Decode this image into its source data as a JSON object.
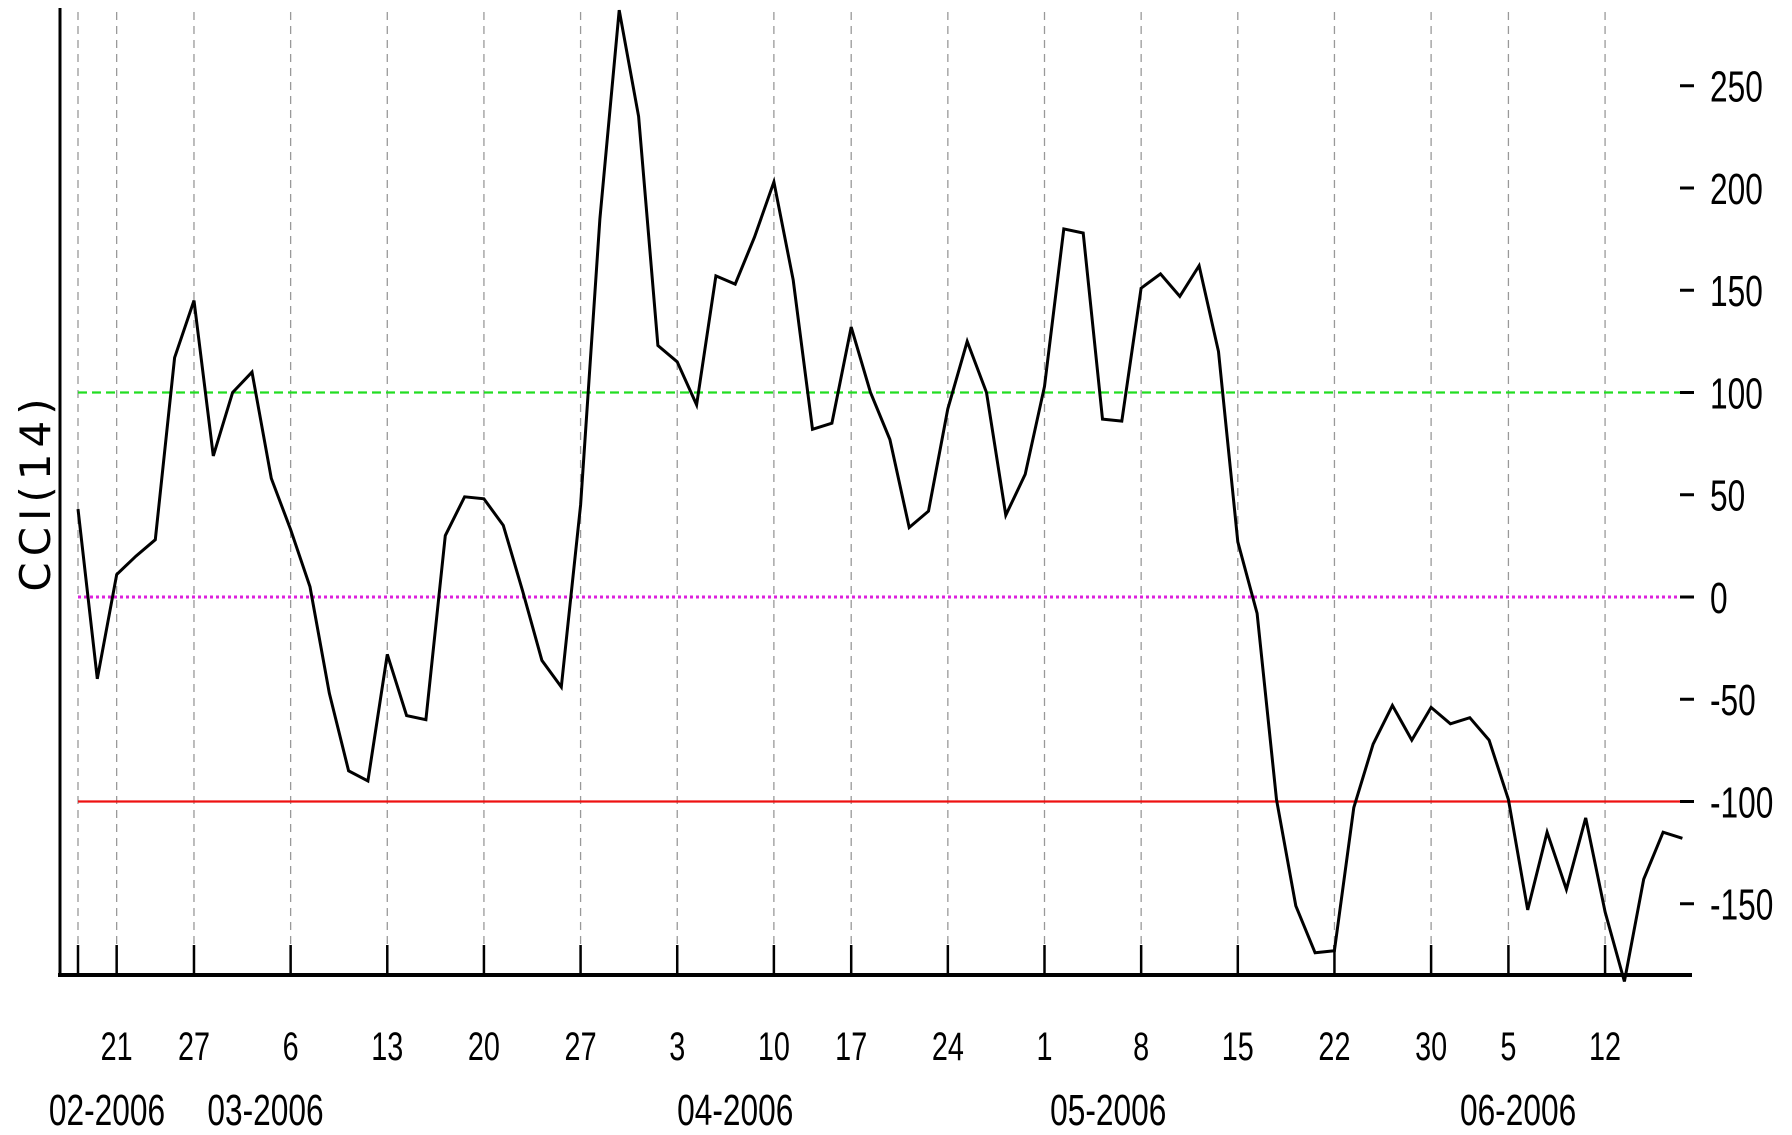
{
  "chart_data": {
    "type": "line",
    "ylabel": "CCI(14)",
    "ylim": [
      -190,
      290
    ],
    "yticks": [
      250,
      200,
      150,
      100,
      50,
      0,
      -50,
      -100,
      -150
    ],
    "ytick_labels": [
      "250",
      "200",
      "150",
      "100",
      "50",
      "0",
      "-50",
      "-100",
      "-150"
    ],
    "reference_lines": [
      {
        "value": 100,
        "color": "#22dd22",
        "style": "dashed"
      },
      {
        "value": 0,
        "color": "#dd22dd",
        "style": "dotted"
      },
      {
        "value": -100,
        "color": "#ee1111",
        "style": "solid"
      }
    ],
    "x_tick_labels": [
      {
        "label": "21",
        "index": 2
      },
      {
        "label": "27",
        "index": 6
      },
      {
        "label": "6",
        "index": 11
      },
      {
        "label": "13",
        "index": 16
      },
      {
        "label": "20",
        "index": 21
      },
      {
        "label": "27",
        "index": 26
      },
      {
        "label": "3",
        "index": 31
      },
      {
        "label": "10",
        "index": 36
      },
      {
        "label": "17",
        "index": 40
      },
      {
        "label": "24",
        "index": 45
      },
      {
        "label": "1",
        "index": 50
      },
      {
        "label": "8",
        "index": 55
      },
      {
        "label": "15",
        "index": 60
      },
      {
        "label": "22",
        "index": 65
      },
      {
        "label": "30",
        "index": 70
      },
      {
        "label": "5",
        "index": 74
      },
      {
        "label": "12",
        "index": 79
      }
    ],
    "month_labels": [
      {
        "label": "02-2006",
        "index": 1.5
      },
      {
        "label": "03-2006",
        "index": 9.7
      },
      {
        "label": "04-2006",
        "index": 34
      },
      {
        "label": "05-2006",
        "index": 53.3
      },
      {
        "label": "06-2006",
        "index": 74.5
      }
    ],
    "series": [
      {
        "color": "#000000",
        "values": [
          43,
          -40,
          11,
          20,
          28,
          117,
          145,
          69,
          100,
          110,
          58,
          33,
          5,
          -47,
          -85,
          -90,
          -28,
          -58,
          -60,
          30,
          49,
          48,
          35,
          3,
          -31,
          -44,
          45,
          185,
          287,
          235,
          123,
          115,
          94,
          157,
          153,
          176,
          203,
          155,
          82,
          85,
          132,
          100,
          77,
          34,
          42,
          92,
          125,
          100,
          40,
          60,
          103,
          180,
          178,
          87,
          86,
          151,
          158,
          147,
          162,
          120,
          27,
          -8,
          -99,
          -151,
          -174,
          -173,
          -103,
          -72,
          -53,
          -70,
          -54,
          -62,
          -59,
          -70,
          -99,
          -153,
          -115,
          -143,
          -108,
          -154,
          -188,
          -138,
          -115,
          -118
        ]
      }
    ]
  }
}
